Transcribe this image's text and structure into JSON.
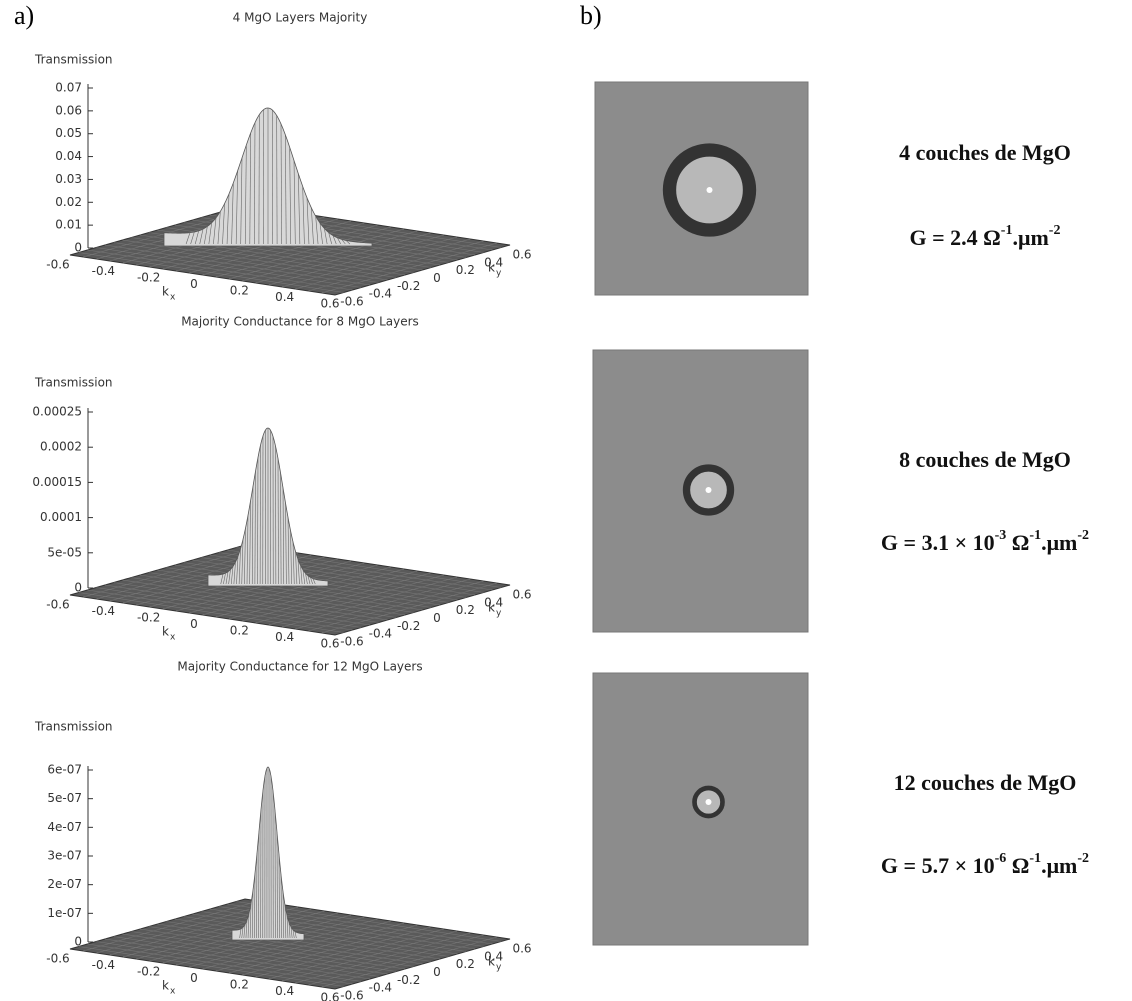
{
  "labels": {
    "a": "a)",
    "b": "b)"
  },
  "plots": [
    {
      "title": "4 MgO Layers  Majority",
      "zlabel": "Transmission",
      "zticks": [
        "0",
        "0.01",
        "0.02",
        "0.03",
        "0.04",
        "0.05",
        "0.06",
        "0.07"
      ],
      "xlabel": "k",
      "xsub": "x",
      "ylabel": "k",
      "ysub": "y",
      "xticks": [
        "-0.6",
        "-0.4",
        "-0.2",
        "0",
        "0.2",
        "0.4",
        "0.6"
      ],
      "yticks": [
        "-0.6",
        "-0.4",
        "-0.2",
        "0",
        "0.2",
        "0.4",
        "0.6"
      ]
    },
    {
      "title": "Majority Conductance for 8 MgO Layers",
      "zlabel": "Transmission",
      "zticks": [
        "0",
        "5e-05",
        "0.0001",
        "0.00015",
        "0.0002",
        "0.00025"
      ],
      "xlabel": "k",
      "xsub": "x",
      "ylabel": "k",
      "ysub": "y",
      "xticks": [
        "-0.6",
        "-0.4",
        "-0.2",
        "0",
        "0.2",
        "0.4",
        "0.6"
      ],
      "yticks": [
        "-0.6",
        "-0.4",
        "-0.2",
        "0",
        "0.2",
        "0.4",
        "0.6"
      ]
    },
    {
      "title": "Majority Conductance for 12 MgO Layers",
      "zlabel": "Transmission",
      "zticks": [
        "0",
        "1e-07",
        "2e-07",
        "3e-07",
        "4e-07",
        "5e-07",
        "6e-07"
      ],
      "xlabel": "k",
      "xsub": "x",
      "ylabel": "k",
      "ysub": "y",
      "xticks": [
        "-0.6",
        "-0.4",
        "-0.2",
        "0",
        "0.2",
        "0.4",
        "0.6"
      ],
      "yticks": [
        "-0.6",
        "-0.4",
        "-0.2",
        "0",
        "0.2",
        "0.4",
        "0.6"
      ]
    }
  ],
  "panels": [
    {
      "caption": "4 couches de MgO",
      "conductance": [
        "G = 2.4 Ω",
        "-1",
        ".μm",
        "-2"
      ]
    },
    {
      "caption": "8 couches de MgO",
      "conductance": [
        "G = 3.1 × 10",
        "-3",
        " Ω",
        "-1",
        ".μm",
        "-2"
      ]
    },
    {
      "caption": "12 couches de MgO",
      "conductance": [
        "G = 5.7 × 10",
        "-6",
        " Ω",
        "-1",
        ".μm",
        "-2"
      ]
    }
  ]
}
